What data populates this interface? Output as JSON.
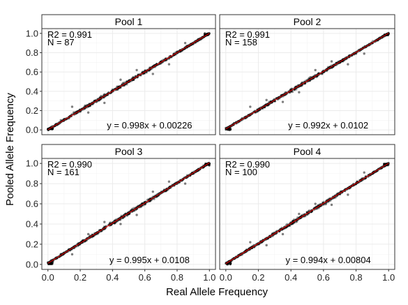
{
  "figure": {
    "xlabel": "Real Allele Frequency",
    "ylabel": "Pooled Allele Frequency"
  },
  "colors": {
    "points": "#000000",
    "fit_line": "#ff0000",
    "panel_border": "#333333",
    "strip_background": "#ffffff",
    "grid": "#ebebeb"
  },
  "chart_data": [
    {
      "type": "scatter",
      "title": "Pool 1",
      "annotations": {
        "r2": "R2 = 0.991",
        "n": "N = 87",
        "equation": "y = 0.998x + 0.00226"
      },
      "fit": {
        "slope": 0.998,
        "intercept": 0.00226
      },
      "xlim": [
        0,
        1
      ],
      "ylim": [
        0,
        1
      ],
      "x_ticks": [
        "0.0",
        "0.2",
        "0.4",
        "0.6",
        "0.8",
        "1.0"
      ],
      "y_ticks": [
        "0.0",
        "0.2",
        "0.4",
        "0.6",
        "0.8",
        "1.0"
      ],
      "points": {
        "x": [
          0.0,
          0.02,
          0.05,
          0.08,
          0.1,
          0.13,
          0.16,
          0.2,
          0.23,
          0.26,
          0.3,
          0.33,
          0.36,
          0.4,
          0.43,
          0.46,
          0.5,
          0.53,
          0.56,
          0.6,
          0.63,
          0.66,
          0.7,
          0.73,
          0.76,
          0.8,
          0.83,
          0.86,
          0.9,
          0.93,
          0.96,
          1.0,
          0.15,
          0.35,
          0.55,
          0.75,
          0.25,
          0.45,
          0.65,
          0.85
        ],
        "y": [
          0.01,
          0.03,
          0.06,
          0.1,
          0.11,
          0.12,
          0.18,
          0.19,
          0.25,
          0.25,
          0.29,
          0.35,
          0.36,
          0.41,
          0.42,
          0.47,
          0.5,
          0.52,
          0.57,
          0.61,
          0.62,
          0.67,
          0.69,
          0.74,
          0.76,
          0.81,
          0.82,
          0.87,
          0.89,
          0.94,
          0.96,
          1.0,
          0.24,
          0.28,
          0.62,
          0.68,
          0.18,
          0.52,
          0.58,
          0.9
        ]
      }
    },
    {
      "type": "scatter",
      "title": "Pool 2",
      "annotations": {
        "r2": "R2 = 0.991",
        "n": "N = 158",
        "equation": "y = 0.992x + 0.0102"
      },
      "fit": {
        "slope": 0.992,
        "intercept": 0.0102
      },
      "xlim": [
        0,
        1
      ],
      "ylim": [
        0,
        1
      ],
      "x_ticks": [
        "0.0",
        "0.2",
        "0.4",
        "0.6",
        "0.8",
        "1.0"
      ],
      "y_ticks": [
        "0.0",
        "0.2",
        "0.4",
        "0.6",
        "0.8",
        "1.0"
      ],
      "points": {
        "x": [
          0.0,
          0.02,
          0.05,
          0.08,
          0.1,
          0.13,
          0.16,
          0.2,
          0.23,
          0.26,
          0.3,
          0.33,
          0.36,
          0.4,
          0.43,
          0.46,
          0.5,
          0.53,
          0.56,
          0.6,
          0.63,
          0.66,
          0.7,
          0.73,
          0.76,
          0.8,
          0.83,
          0.86,
          0.9,
          0.93,
          0.96,
          1.0,
          0.15,
          0.35,
          0.55,
          0.75,
          0.25,
          0.45,
          0.65,
          0.85
        ],
        "y": [
          0.02,
          0.03,
          0.07,
          0.09,
          0.12,
          0.14,
          0.17,
          0.2,
          0.24,
          0.27,
          0.3,
          0.34,
          0.37,
          0.4,
          0.44,
          0.46,
          0.51,
          0.53,
          0.56,
          0.6,
          0.64,
          0.66,
          0.7,
          0.73,
          0.77,
          0.79,
          0.83,
          0.86,
          0.9,
          0.93,
          0.96,
          1.0,
          0.24,
          0.29,
          0.62,
          0.68,
          0.31,
          0.39,
          0.71,
          0.79
        ]
      }
    },
    {
      "type": "scatter",
      "title": "Pool 3",
      "annotations": {
        "r2": "R2 = 0.990",
        "n": "N = 161",
        "equation": "y = 0.995x + 0.0108"
      },
      "fit": {
        "slope": 0.995,
        "intercept": 0.0108
      },
      "xlim": [
        0,
        1
      ],
      "ylim": [
        0,
        1
      ],
      "x_ticks": [
        "0.0",
        "0.2",
        "0.4",
        "0.6",
        "0.8",
        "1.0"
      ],
      "y_ticks": [
        "0.0",
        "0.2",
        "0.4",
        "0.6",
        "0.8",
        "1.0"
      ],
      "points": {
        "x": [
          0.0,
          0.02,
          0.05,
          0.08,
          0.1,
          0.13,
          0.16,
          0.2,
          0.23,
          0.26,
          0.3,
          0.33,
          0.36,
          0.4,
          0.43,
          0.46,
          0.5,
          0.53,
          0.56,
          0.6,
          0.63,
          0.66,
          0.7,
          0.73,
          0.76,
          0.8,
          0.83,
          0.86,
          0.9,
          0.93,
          0.96,
          1.0,
          0.15,
          0.35,
          0.55,
          0.75,
          0.25,
          0.45,
          0.65,
          0.85
        ],
        "y": [
          0.02,
          0.04,
          0.06,
          0.1,
          0.11,
          0.15,
          0.17,
          0.21,
          0.24,
          0.27,
          0.31,
          0.34,
          0.37,
          0.41,
          0.43,
          0.47,
          0.51,
          0.54,
          0.57,
          0.61,
          0.63,
          0.67,
          0.71,
          0.73,
          0.77,
          0.8,
          0.83,
          0.86,
          0.9,
          0.93,
          0.96,
          1.0,
          0.1,
          0.42,
          0.49,
          0.82,
          0.3,
          0.4,
          0.72,
          0.8
        ]
      }
    },
    {
      "type": "scatter",
      "title": "Pool 4",
      "annotations": {
        "r2": "R2 = 0.990",
        "n": "N = 100",
        "equation": "y = 0.994x + 0.00804"
      },
      "fit": {
        "slope": 0.994,
        "intercept": 0.00804
      },
      "xlim": [
        0,
        1
      ],
      "ylim": [
        0,
        1
      ],
      "x_ticks": [
        "0.0",
        "0.2",
        "0.4",
        "0.6",
        "0.8",
        "1.0"
      ],
      "y_ticks": [
        "0.0",
        "0.2",
        "0.4",
        "0.6",
        "0.8",
        "1.0"
      ],
      "points": {
        "x": [
          0.0,
          0.02,
          0.05,
          0.08,
          0.1,
          0.13,
          0.16,
          0.2,
          0.23,
          0.26,
          0.3,
          0.33,
          0.36,
          0.4,
          0.43,
          0.46,
          0.5,
          0.53,
          0.56,
          0.6,
          0.63,
          0.66,
          0.7,
          0.73,
          0.76,
          0.8,
          0.83,
          0.86,
          0.9,
          0.93,
          0.96,
          1.0,
          0.15,
          0.35,
          0.55,
          0.75,
          0.25,
          0.45,
          0.65,
          0.85
        ],
        "y": [
          0.01,
          0.03,
          0.06,
          0.09,
          0.11,
          0.14,
          0.17,
          0.2,
          0.24,
          0.26,
          0.31,
          0.33,
          0.37,
          0.4,
          0.44,
          0.46,
          0.5,
          0.53,
          0.57,
          0.6,
          0.63,
          0.66,
          0.7,
          0.73,
          0.76,
          0.8,
          0.83,
          0.86,
          0.9,
          0.93,
          0.96,
          1.0,
          0.22,
          0.3,
          0.6,
          0.69,
          0.19,
          0.5,
          0.59,
          0.91
        ]
      }
    }
  ]
}
